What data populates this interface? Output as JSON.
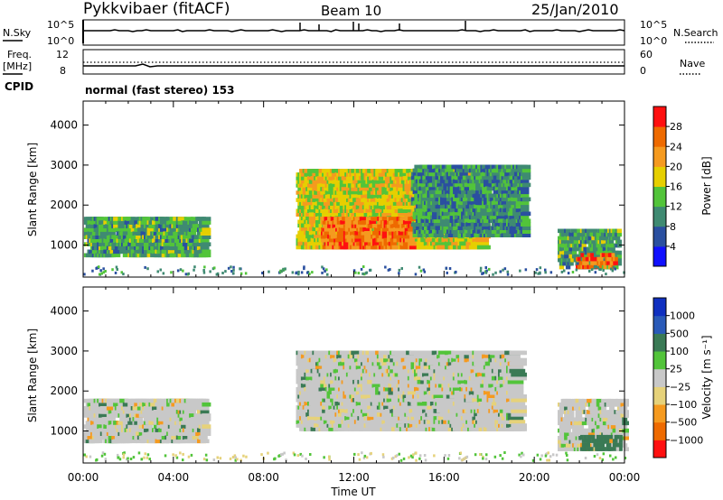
{
  "header": {
    "station": "Pykkvibaer (fitACF)",
    "beam": "Beam 10",
    "date": "25/Jan/2010"
  },
  "noise_panel": {
    "left_label": "N.Sky",
    "left_top": "10^5",
    "left_bottom": "10^0",
    "right_top": "10^5",
    "right_bottom": "10^0",
    "right_label": "N.Search"
  },
  "freq_panel": {
    "left_label_1": "Freq.",
    "left_label_2": "[MHz]",
    "left_top": "12",
    "left_bottom": "8",
    "right_top": "60",
    "right_bottom": "0",
    "right_label": "Nave"
  },
  "cpid": {
    "label": "CPID",
    "value": "normal (fast stereo) 153"
  },
  "chart_data": [
    {
      "type": "heatmap",
      "name": "power",
      "ylabel": "Slant Range [km]",
      "yticks": [
        "1000",
        "2000",
        "3000",
        "4000"
      ],
      "ylim": [
        200,
        4600
      ],
      "colorbar_label": "Power [dB]",
      "colorbar_ticks": [
        "4",
        "8",
        "12",
        "16",
        "20",
        "24",
        "28"
      ],
      "colorbar_colors": [
        "#1010ff",
        "#2a4fa0",
        "#3f8a72",
        "#52c43a",
        "#e6cf00",
        "#f59a1f",
        "#ee6a00",
        "#ff1010"
      ],
      "regions": [
        {
          "t0": 0.0,
          "t1": 5.3,
          "r0": 700,
          "r1": 1700,
          "level": 14
        },
        {
          "t0": 9.4,
          "t1": 17.5,
          "r0": 900,
          "r1": 2900,
          "level": 20
        },
        {
          "t0": 10.5,
          "t1": 14.5,
          "r0": 900,
          "r1": 1700,
          "level": 27
        },
        {
          "t0": 14.5,
          "t1": 19.5,
          "r0": 1200,
          "r1": 3000,
          "level": 12
        },
        {
          "t0": 21.0,
          "t1": 23.7,
          "r0": 400,
          "r1": 1400,
          "level": 14
        },
        {
          "t0": 21.8,
          "t1": 23.6,
          "r0": 400,
          "r1": 800,
          "level": 28
        }
      ]
    },
    {
      "type": "heatmap",
      "name": "velocity",
      "xlabel": "Time UT",
      "xticks": [
        "00:00",
        "04:00",
        "08:00",
        "12:00",
        "16:00",
        "20:00",
        "00:00"
      ],
      "ylabel": "Slant Range [km]",
      "yticks": [
        "1000",
        "2000",
        "3000",
        "4000"
      ],
      "ylim": [
        200,
        4600
      ],
      "colorbar_label": "Velocity [m s⁻¹]",
      "colorbar_ticks": [
        "1000",
        "500",
        "100",
        "25",
        "−25",
        "−100",
        "−500",
        "−1000"
      ],
      "colorbar_colors": [
        "#1030c0",
        "#2a5ab8",
        "#3a7a55",
        "#52c43a",
        "#c8c8c8",
        "#e6d27a",
        "#f59a1f",
        "#ee6a00",
        "#ff1010"
      ],
      "regions": [
        {
          "t0": 0.0,
          "t1": 5.3,
          "r0": 700,
          "r1": 1800,
          "level": 0
        },
        {
          "t0": 9.4,
          "t1": 19.0,
          "r0": 1000,
          "r1": 3000,
          "level": 0
        },
        {
          "t0": 21.0,
          "t1": 24.0,
          "r0": 500,
          "r1": 1800,
          "level": 0
        },
        {
          "t0": 22.0,
          "t1": 23.8,
          "r0": 500,
          "r1": 900,
          "level": 300
        }
      ]
    }
  ]
}
